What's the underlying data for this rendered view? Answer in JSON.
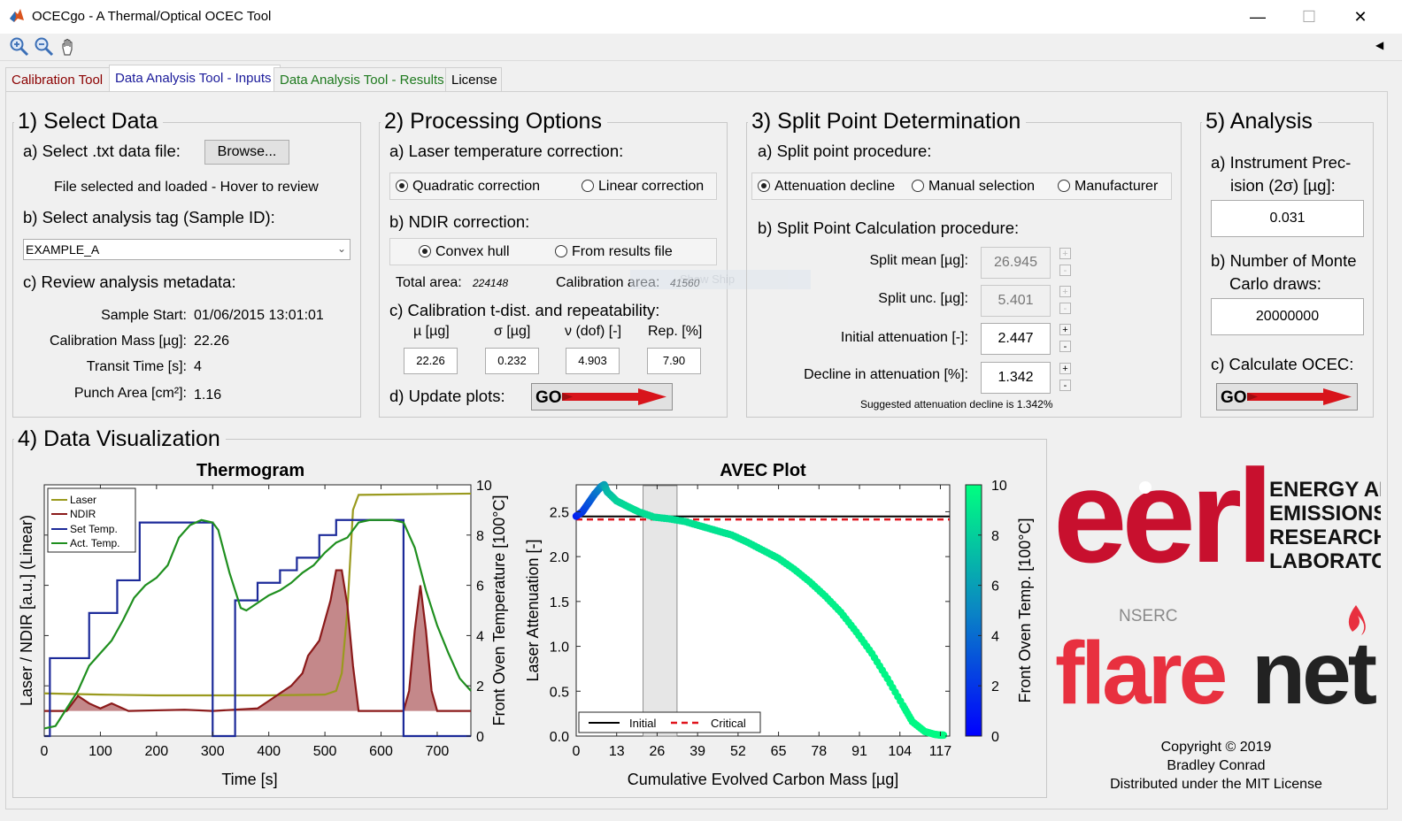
{
  "window": {
    "title": "OCECgo - A Thermal/Optical OCEC Tool",
    "minimize": "—",
    "maximize": "☐",
    "close": "✕"
  },
  "toolbar": [
    "zoom-in-icon",
    "zoom-out-icon",
    "pan-icon"
  ],
  "tabs": [
    {
      "label": "Calibration Tool",
      "color": "#8b0000"
    },
    {
      "label": "Data Analysis Tool - Inputs",
      "color": "#1a1a9a"
    },
    {
      "label": "Data Analysis Tool - Results",
      "color": "#1f7a1f"
    },
    {
      "label": "License",
      "color": "#000000"
    }
  ],
  "select_data": {
    "title": "1) Select Data",
    "a_label": "a) Select .txt data file:",
    "browse": "Browse...",
    "file_status": "File selected and loaded - Hover to review",
    "b_label": "b) Select analysis tag (Sample ID):",
    "tag_value": "EXAMPLE_A",
    "c_label": "c) Review analysis metadata:",
    "meta": [
      {
        "label": "Sample Start:",
        "value": "01/06/2015 13:01:01"
      },
      {
        "label": "Calibration Mass [µg]:",
        "value": "22.26"
      },
      {
        "label": "Transit Time [s]:",
        "value": "4"
      },
      {
        "label": "Punch Area [cm²]:",
        "value": "1.16"
      }
    ]
  },
  "processing": {
    "title": "2) Processing Options",
    "a_label": "a) Laser temperature correction:",
    "laser_opts": [
      "Quadratic correction",
      "Linear correction"
    ],
    "b_label": "b) NDIR correction:",
    "ndir_opts": [
      "Convex hull",
      "From results file"
    ],
    "total_area_label": "Total area:",
    "total_area": "224148",
    "cal_area_label": "Calibration area:",
    "cal_area": "41560",
    "c_label": "c) Calibration t-dist. and repeatability:",
    "col_heads": [
      "µ [µg]",
      "σ [µg]",
      "ν (dof) [-]",
      "Rep. [%]"
    ],
    "col_vals": [
      "22.26",
      "0.232",
      "4.903",
      "7.90"
    ],
    "d_label": "d) Update plots:"
  },
  "split": {
    "title": "3) Split Point Determination",
    "a_label": "a) Split point procedure:",
    "opts": [
      "Attenuation decline",
      "Manual selection",
      "Manufacturer"
    ],
    "b_label": "b) Split Point Calculation procedure:",
    "rows": [
      {
        "label": "Split mean [µg]:",
        "value": "26.945"
      },
      {
        "label": "Split unc. [µg]:",
        "value": "5.401"
      },
      {
        "label": "Initial attenuation [-]:",
        "value": "2.447"
      },
      {
        "label": "Decline in attenuation [%]:",
        "value": "1.342"
      }
    ],
    "suggestion": "Suggested attenuation decline is 1.342%"
  },
  "analysis": {
    "title": "5) Analysis",
    "a_label_1": "a) Instrument Prec-",
    "a_label_2": "ision (2σ) [µg]:",
    "precision": "0.031",
    "b_label_1": "b) Number of Monte",
    "b_label_2": "Carlo draws:",
    "draws": "20000000",
    "c_label": "c) Calculate OCEC:"
  },
  "go_label": "GO",
  "viz": {
    "title": "4) Data Visualization"
  },
  "thermogram": {
    "title": "Thermogram",
    "xlabel": "Time [s]",
    "ylabel": "Laser / NDIR [a.u.] (Linear)",
    "y2label": "Front Oven Temperature [100°C]",
    "xticks": [
      "0",
      "100",
      "200",
      "300",
      "400",
      "500",
      "600",
      "700"
    ],
    "y2ticks": [
      "0",
      "2",
      "4",
      "6",
      "8",
      "10"
    ],
    "legend": [
      "Laser",
      "NDIR",
      "Set Temp.",
      "Act. Temp."
    ],
    "colors": {
      "laser": "#9a9a1e",
      "ndir": "#8b1a1a",
      "ndir_fill": "#c4888a",
      "set": "#1c2a99",
      "act": "#1f8f1f"
    }
  },
  "chart_data": [
    {
      "type": "line",
      "title": "Thermogram",
      "xlabel": "Time [s]",
      "ylabel": "Laser / NDIR [a.u.] (Linear)",
      "y2label": "Front Oven Temperature [100°C]",
      "xlim": [
        0,
        760
      ],
      "y2lim": [
        0,
        10
      ],
      "series": [
        {
          "name": "Set Temp.",
          "axis": "right",
          "x": [
            0,
            10,
            10,
            80,
            80,
            130,
            130,
            170,
            170,
            300,
            300,
            340,
            340,
            380,
            380,
            420,
            420,
            450,
            450,
            490,
            490,
            520,
            520,
            640,
            640,
            690,
            690,
            760
          ],
          "y": [
            0,
            0,
            3.1,
            3.1,
            4.9,
            4.9,
            6.2,
            6.2,
            8.5,
            8.5,
            0,
            0,
            5.4,
            5.4,
            6.1,
            6.1,
            6.6,
            6.6,
            7.1,
            7.1,
            8.0,
            8.0,
            8.6,
            8.6,
            0,
            0,
            0,
            0
          ]
        },
        {
          "name": "Act. Temp.",
          "axis": "right",
          "x": [
            0,
            20,
            40,
            60,
            80,
            100,
            120,
            140,
            160,
            180,
            200,
            220,
            240,
            260,
            280,
            300,
            310,
            330,
            350,
            360,
            380,
            400,
            420,
            440,
            460,
            480,
            500,
            520,
            540,
            560,
            580,
            600,
            620,
            640,
            660,
            680,
            700,
            720,
            740,
            760
          ],
          "y": [
            0.3,
            0.4,
            1.1,
            1.8,
            2.8,
            3.3,
            3.8,
            4.6,
            5.5,
            6.0,
            6.3,
            6.8,
            7.9,
            8.4,
            8.6,
            8.5,
            8.2,
            6.5,
            5.1,
            5.0,
            5.3,
            5.6,
            5.8,
            6.1,
            6.5,
            6.8,
            7.3,
            7.7,
            7.9,
            8.5,
            8.6,
            8.6,
            8.6,
            8.5,
            7.5,
            5.8,
            4.4,
            3.3,
            2.3,
            1.8
          ]
        },
        {
          "name": "Laser",
          "axis": "left",
          "x": [
            0,
            100,
            200,
            300,
            400,
            500,
            520,
            530,
            540,
            550,
            560,
            760
          ],
          "y": [
            1.7,
            1.65,
            1.62,
            1.62,
            1.62,
            1.65,
            1.8,
            2.5,
            5.0,
            9.0,
            9.6,
            9.65
          ]
        },
        {
          "name": "NDIR",
          "axis": "left",
          "x": [
            0,
            40,
            60,
            80,
            100,
            120,
            150,
            250,
            300,
            380,
            400,
            420,
            440,
            460,
            470,
            490,
            500,
            510,
            520,
            530,
            540,
            550,
            560,
            640,
            650,
            660,
            670,
            680,
            690,
            700,
            760
          ],
          "y": [
            1.0,
            1.0,
            1.6,
            1.3,
            1.1,
            1.3,
            1.0,
            1.05,
            1.0,
            1.1,
            1.4,
            1.7,
            2.0,
            2.5,
            3.2,
            3.8,
            4.6,
            5.4,
            6.6,
            6.6,
            5.2,
            2.8,
            1.0,
            1.0,
            1.8,
            4.2,
            6.0,
            4.2,
            1.8,
            1.0,
            1.0
          ]
        }
      ]
    },
    {
      "type": "scatter",
      "title": "AVEC Plot",
      "xlabel": "Cumulative Evolved Carbon Mass [µg]",
      "ylabel": "Laser Attenuation [-]",
      "colorbar_label": "Front Oven Temp. [100°C]",
      "xlim": [
        0,
        120
      ],
      "ylim": [
        0,
        2.8
      ],
      "clim": [
        0,
        10
      ],
      "x_ticks": [
        0,
        13,
        26,
        39,
        52,
        65,
        78,
        91,
        104,
        117
      ],
      "y_ticks": [
        0.0,
        0.5,
        1.0,
        1.5,
        2.0,
        2.5
      ],
      "initial_line": 2.447,
      "critical_line": 2.414,
      "split_band": [
        21.5,
        32.4
      ],
      "points": {
        "x": [
          0,
          2,
          4,
          6,
          8,
          9,
          10,
          13,
          17,
          20,
          25,
          30,
          35,
          40,
          45,
          50,
          55,
          60,
          65,
          70,
          75,
          80,
          85,
          90,
          95,
          100,
          105,
          108,
          112,
          115,
          117,
          118
        ],
        "y": [
          2.45,
          2.5,
          2.6,
          2.7,
          2.78,
          2.8,
          2.72,
          2.62,
          2.55,
          2.5,
          2.44,
          2.42,
          2.39,
          2.34,
          2.29,
          2.24,
          2.16,
          2.07,
          1.98,
          1.86,
          1.72,
          1.56,
          1.38,
          1.16,
          0.92,
          0.64,
          0.34,
          0.16,
          0.05,
          0.02,
          0.01,
          0.01
        ],
        "temp": [
          1,
          2,
          3,
          4,
          5,
          6,
          7,
          8,
          8.5,
          8.6,
          8.6,
          8.6,
          8.7,
          8.8,
          8.8,
          8.9,
          9,
          9,
          9.1,
          9.2,
          9.3,
          9.3,
          9.4,
          9.5,
          9.5,
          9.6,
          9.6,
          9.7,
          9.7,
          9.8,
          9.8,
          9.8
        ]
      }
    }
  ],
  "avec": {
    "title": "AVEC Plot",
    "xlabel": "Cumulative Evolved Carbon Mass [µg]",
    "ylabel": "Laser Attenuation [-]",
    "cblabel": "Front Oven Temp. [100°C]",
    "xticks": [
      "0",
      "13",
      "26",
      "39",
      "52",
      "65",
      "78",
      "91",
      "104",
      "117"
    ],
    "yticks": [
      "0.0",
      "0.5",
      "1.0",
      "1.5",
      "2.0",
      "2.5"
    ],
    "cbticks": [
      "0",
      "2",
      "4",
      "6",
      "8",
      "10"
    ],
    "legend": [
      "Initial",
      "Critical"
    ],
    "ghost": "Show Ship"
  },
  "logos": {
    "eerl": "eerl",
    "eerl_words": [
      "ENERGY AND",
      "EMISSIONS",
      "RESEARCH",
      "LABORATORY"
    ],
    "nserc": "NSERC",
    "flare": "flare",
    "net": "net",
    "brand_red": "#c8102e"
  },
  "copyright": [
    "Copyright © 2019",
    "Bradley Conrad",
    "Distributed under the MIT License"
  ]
}
